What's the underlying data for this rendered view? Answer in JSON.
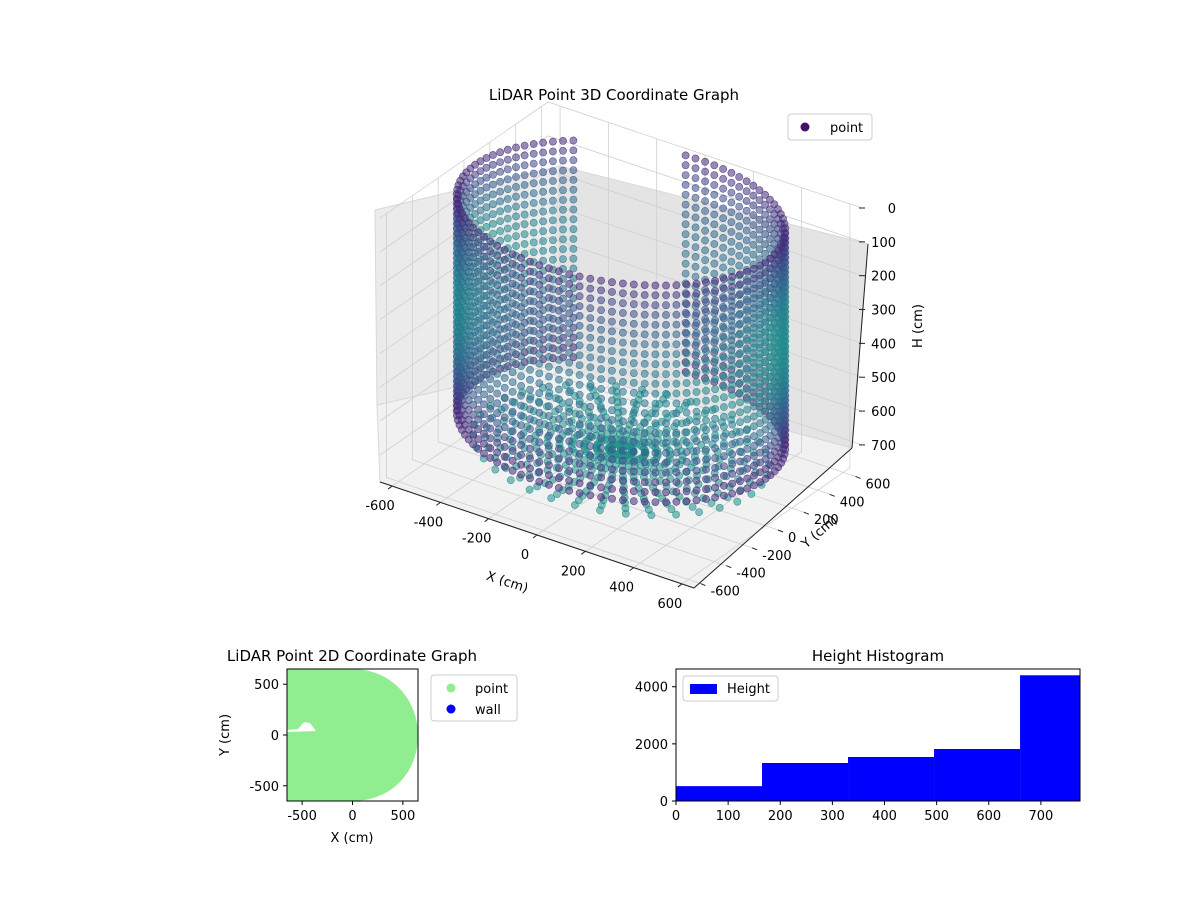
{
  "chart_data": [
    {
      "type": "scatter",
      "projection": "3d",
      "title": "LiDAR Point 3D Coordinate Graph",
      "xlabel": "X (cm)",
      "ylabel": "Y (cm)",
      "zlabel": "H (cm)",
      "xlim": [
        -650,
        650
      ],
      "ylim": [
        -650,
        650
      ],
      "zlim": [
        780,
        0
      ],
      "z_inverted": true,
      "x_ticks": [
        -600,
        -400,
        -200,
        0,
        200,
        400,
        600
      ],
      "y_ticks": [
        -600,
        -400,
        -200,
        0,
        200,
        400,
        600
      ],
      "z_ticks": [
        0,
        100,
        200,
        300,
        400,
        500,
        600,
        700
      ],
      "legend": [
        {
          "name": "point",
          "color": "#46106f"
        }
      ],
      "legend_position": "upper-right",
      "colormap": "viridis",
      "series": [
        {
          "name": "point",
          "shape": "cylinder-scan",
          "radius": 600,
          "height_top": 0,
          "height_bottom": 640,
          "angle_start_deg": 135,
          "angle_end_deg": 455
        }
      ],
      "grid": true
    },
    {
      "type": "scatter",
      "title": "LiDAR Point 2D Coordinate Graph",
      "xlabel": "X (cm)",
      "ylabel": "Y (cm)",
      "xlim": [
        -650,
        650
      ],
      "ylim": [
        -650,
        650
      ],
      "x_ticks": [
        -500,
        0,
        500
      ],
      "y_ticks": [
        -500,
        0,
        500
      ],
      "legend": [
        {
          "name": "point",
          "color": "#90ee90"
        },
        {
          "name": "wall",
          "color": "#0000ff"
        }
      ],
      "legend_position": "outside-right",
      "series": [
        {
          "name": "point",
          "color": "#90ee90",
          "footprint": "disc",
          "radius": 650
        },
        {
          "name": "wall",
          "color": "#0000ff",
          "values": []
        }
      ]
    },
    {
      "type": "bar",
      "subtype": "histogram",
      "title": "Height Histogram",
      "xlabel": "",
      "ylabel": "",
      "bins": [
        {
          "start": 0,
          "end": 165,
          "count": 520
        },
        {
          "start": 165,
          "end": 330,
          "count": 1330
        },
        {
          "start": 330,
          "end": 495,
          "count": 1540
        },
        {
          "start": 495,
          "end": 660,
          "count": 1820
        },
        {
          "start": 660,
          "end": 775,
          "count": 4400
        }
      ],
      "xlim": [
        0,
        775
      ],
      "ylim": [
        0,
        4620
      ],
      "x_ticks": [
        0,
        100,
        200,
        300,
        400,
        500,
        600,
        700
      ],
      "y_ticks": [
        0,
        2000,
        4000
      ],
      "bar_color": "#0000ff",
      "legend": [
        {
          "name": "Height",
          "color": "#0000ff"
        }
      ],
      "legend_position": "upper-left"
    }
  ]
}
